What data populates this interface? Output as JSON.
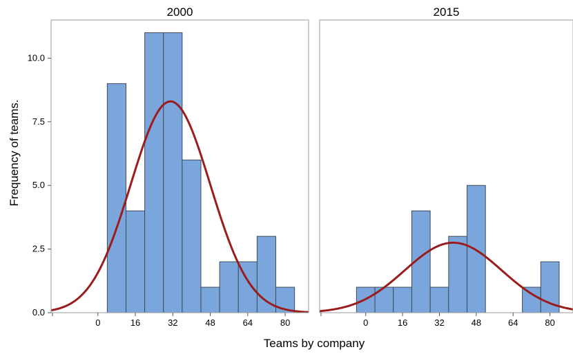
{
  "chart_data": {
    "type": "bar",
    "subtype": "histogram-with-normal-curve",
    "xlabel": "Teams by company",
    "ylabel": "Frequency of teams.",
    "xlim": [
      -20,
      90
    ],
    "ylim": [
      0,
      11.5
    ],
    "x_ticks": [
      0,
      16,
      32,
      48,
      64,
      80
    ],
    "y_ticks": [
      0.0,
      2.5,
      5.0,
      7.5,
      10.0
    ],
    "y_tick_labels": [
      "0.0",
      "2.5",
      "5.0",
      "7.5",
      "10.0"
    ],
    "bin_width": 8,
    "bar_color": "#7aa6dc",
    "curve_color": "#9b1c1c",
    "panels": [
      {
        "title": "2000",
        "bins": [
          {
            "x0": 4,
            "x1": 12,
            "count": 9
          },
          {
            "x0": 12,
            "x1": 20,
            "count": 4
          },
          {
            "x0": 20,
            "x1": 28,
            "count": 11
          },
          {
            "x0": 28,
            "x1": 36,
            "count": 11
          },
          {
            "x0": 36,
            "x1": 44,
            "count": 6
          },
          {
            "x0": 44,
            "x1": 52,
            "count": 1
          },
          {
            "x0": 52,
            "x1": 60,
            "count": 2
          },
          {
            "x0": 60,
            "x1": 68,
            "count": 2
          },
          {
            "x0": 68,
            "x1": 76,
            "count": 3
          },
          {
            "x0": 76,
            "x1": 84,
            "count": 1
          }
        ],
        "curve": {
          "mean": 31,
          "sd": 17,
          "peak": 8.3
        }
      },
      {
        "title": "2015",
        "bins": [
          {
            "x0": -4,
            "x1": 4,
            "count": 1
          },
          {
            "x0": 4,
            "x1": 12,
            "count": 1
          },
          {
            "x0": 12,
            "x1": 20,
            "count": 1
          },
          {
            "x0": 20,
            "x1": 28,
            "count": 4
          },
          {
            "x0": 28,
            "x1": 36,
            "count": 1
          },
          {
            "x0": 36,
            "x1": 44,
            "count": 3
          },
          {
            "x0": 44,
            "x1": 52,
            "count": 5
          },
          {
            "x0": 68,
            "x1": 76,
            "count": 1
          },
          {
            "x0": 76,
            "x1": 84,
            "count": 2
          }
        ],
        "curve": {
          "mean": 38,
          "sd": 21,
          "peak": 2.75
        }
      }
    ]
  }
}
